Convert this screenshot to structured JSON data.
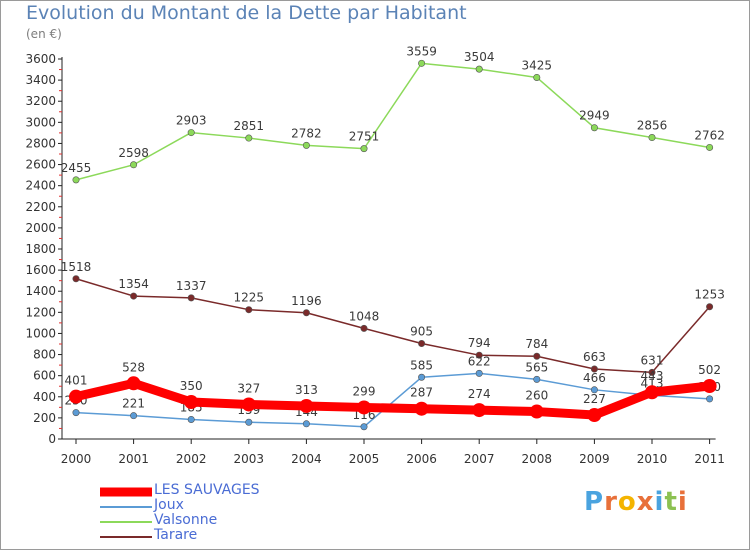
{
  "title": "Evolution du Montant de la Dette par Habitant",
  "unit_label": "(en €)",
  "logo": {
    "text": "Proxiti"
  },
  "chart_data": {
    "type": "line",
    "x": [
      "2000",
      "2001",
      "2002",
      "2003",
      "2004",
      "2005",
      "2006",
      "2007",
      "2008",
      "2009",
      "2010",
      "2011"
    ],
    "ylim": [
      0,
      3600
    ],
    "yticks": [
      0,
      200,
      400,
      600,
      800,
      1000,
      1200,
      1400,
      1600,
      1800,
      2000,
      2200,
      2400,
      2600,
      2800,
      3000,
      3200,
      3400,
      3600
    ],
    "grid": false,
    "legend_position": "bottom-left",
    "series": [
      {
        "name": "Valsonne",
        "color": "#8cd95a",
        "values": [
          2455,
          2598,
          2903,
          2851,
          2782,
          2751,
          3559,
          3504,
          3425,
          2949,
          2856,
          2762
        ]
      },
      {
        "name": "Tarare",
        "color": "#7a2a2a",
        "values": [
          1518,
          1354,
          1337,
          1225,
          1196,
          1048,
          905,
          794,
          784,
          663,
          631,
          1253
        ]
      },
      {
        "name": "Joux",
        "color": "#5b9bd5",
        "values": [
          250,
          221,
          185,
          159,
          144,
          116,
          585,
          622,
          565,
          466,
          413,
          380
        ]
      },
      {
        "name": "LES SAUVAGES",
        "color": "#ff0000",
        "values": [
          401,
          528,
          350,
          327,
          313,
          299,
          287,
          274,
          260,
          227,
          443,
          502
        ]
      }
    ],
    "data_labels": {
      "Valsonne": [
        "2455",
        "2598",
        "2903",
        "2851",
        "2782",
        "2751",
        "3559",
        "3504",
        "3425",
        "2949",
        "2856",
        "2762"
      ],
      "Tarare": [
        "1518",
        "1354",
        "1337",
        "1225",
        "1196",
        "1048",
        "905",
        "794",
        "784",
        "663",
        "631",
        "1253"
      ],
      "Joux": [
        "250",
        "221",
        "185",
        "159",
        "144",
        "116",
        "585",
        "622",
        "565",
        "466",
        "413",
        "380"
      ],
      "LES SAUVAGES": [
        "401",
        "528",
        "350",
        "327",
        "313",
        "299",
        "287",
        "274",
        "260",
        "227",
        "443",
        "502"
      ]
    },
    "legend": [
      "LES SAUVAGES",
      "Joux",
      "Valsonne",
      "Tarare"
    ]
  }
}
